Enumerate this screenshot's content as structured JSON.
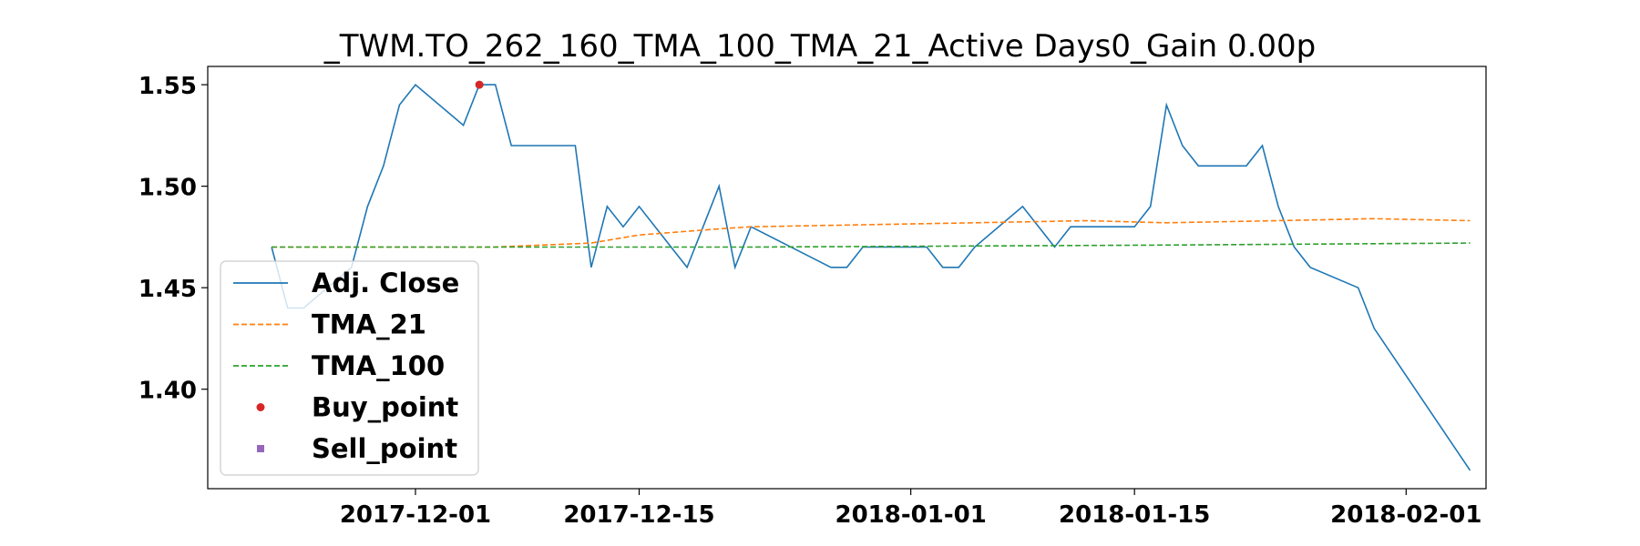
{
  "chart_data": {
    "type": "line",
    "title": "_TWM.TO_262_160_TMA_100_TMA_21_Active Days0_Gain   0.00p",
    "xlabel": "",
    "ylabel": "",
    "x_type": "date",
    "xlim": [
      "2017-11-18",
      "2018-02-06"
    ],
    "ylim": [
      1.351,
      1.559
    ],
    "x_ticks": [
      "2017-12-01",
      "2017-12-15",
      "2018-01-01",
      "2018-01-15",
      "2018-02-01"
    ],
    "y_ticks": [
      1.4,
      1.45,
      1.5,
      1.55
    ],
    "y_tick_labels": [
      "1.40",
      "1.45",
      "1.50",
      "1.55"
    ],
    "grid": false,
    "legend_position": "center-left",
    "series": [
      {
        "name": "Adj. Close",
        "color": "#1f77b4",
        "style": "solid",
        "x": [
          "2017-11-22",
          "2017-11-23",
          "2017-11-24",
          "2017-11-27",
          "2017-11-28",
          "2017-11-29",
          "2017-11-30",
          "2017-12-01",
          "2017-12-04",
          "2017-12-05",
          "2017-12-06",
          "2017-12-07",
          "2017-12-08",
          "2017-12-11",
          "2017-12-12",
          "2017-12-13",
          "2017-12-14",
          "2017-12-15",
          "2017-12-18",
          "2017-12-19",
          "2017-12-20",
          "2017-12-21",
          "2017-12-22",
          "2017-12-27",
          "2017-12-28",
          "2017-12-29",
          "2018-01-02",
          "2018-01-03",
          "2018-01-04",
          "2018-01-05",
          "2018-01-08",
          "2018-01-09",
          "2018-01-10",
          "2018-01-11",
          "2018-01-12",
          "2018-01-15",
          "2018-01-16",
          "2018-01-17",
          "2018-01-18",
          "2018-01-19",
          "2018-01-22",
          "2018-01-23",
          "2018-01-24",
          "2018-01-25",
          "2018-01-26",
          "2018-01-29",
          "2018-01-30",
          "2018-02-05"
        ],
        "values": [
          1.47,
          1.44,
          1.44,
          1.46,
          1.49,
          1.51,
          1.54,
          1.55,
          1.53,
          1.55,
          1.55,
          1.52,
          1.52,
          1.52,
          1.46,
          1.49,
          1.48,
          1.49,
          1.46,
          1.48,
          1.5,
          1.46,
          1.48,
          1.46,
          1.46,
          1.47,
          1.47,
          1.46,
          1.46,
          1.47,
          1.49,
          1.48,
          1.47,
          1.48,
          1.48,
          1.48,
          1.49,
          1.54,
          1.52,
          1.51,
          1.51,
          1.52,
          1.49,
          1.47,
          1.46,
          1.45,
          1.43,
          1.36
        ]
      },
      {
        "name": "TMA_21",
        "color": "#ff7f0e",
        "style": "dashed",
        "x": [
          "2017-11-22",
          "2017-11-30",
          "2017-12-06",
          "2017-12-12",
          "2017-12-15",
          "2017-12-20",
          "2017-12-22",
          "2017-12-29",
          "2018-01-05",
          "2018-01-12",
          "2018-01-17",
          "2018-01-24",
          "2018-01-30",
          "2018-02-05"
        ],
        "values": [
          1.47,
          1.47,
          1.47,
          1.472,
          1.476,
          1.479,
          1.48,
          1.481,
          1.482,
          1.483,
          1.482,
          1.483,
          1.484,
          1.483
        ]
      },
      {
        "name": "TMA_100",
        "color": "#2ca02c",
        "style": "dashed",
        "x": [
          "2017-11-22",
          "2017-12-22",
          "2018-01-17",
          "2018-02-05"
        ],
        "values": [
          1.47,
          1.47,
          1.471,
          1.472
        ]
      },
      {
        "name": "Buy_point",
        "color": "#d62728",
        "style": "marker-circle",
        "x": [
          "2017-12-05"
        ],
        "values": [
          1.55
        ]
      },
      {
        "name": "Sell_point",
        "color": "#9467bd",
        "style": "marker-square",
        "x": [],
        "values": []
      }
    ]
  }
}
